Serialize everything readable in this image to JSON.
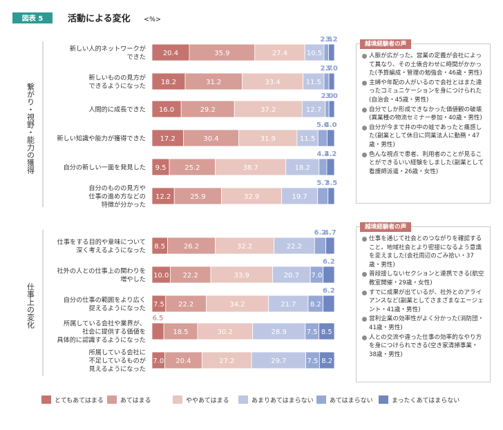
{
  "figure": {
    "badge": "図表 5",
    "title": "活動による変化",
    "unit": "<%>"
  },
  "groups": [
    {
      "label": "繋がり・視野・能力の獲得"
    },
    {
      "label": "仕事上の変化"
    }
  ],
  "colors": [
    "#c4736e",
    "#d79d97",
    "#e9c6bf",
    "#bdc7e3",
    "#96a8d5",
    "#6f86c1"
  ],
  "comment_boxes": [
    {
      "title": "越境経験者の声",
      "items": [
        "人脈が広がった。営業の定義が会社によって異なり、その土俵合わせに時間がかかった(予算編成・管理の勉強会・46歳・男性)",
        "主婦や年配の人がいるので会社とはまた違ったコミュニケーションを身につけられた(自治会・45歳・男性)",
        "自分でしか形成できなかった価値観の破壊(異業種の物流セミナー参加・40歳・男性)",
        "自分が今まで井の中の蛙であったと痛感した(副業として休日に同業法人に勤務・47歳・男性)",
        "色んな視点で患者、利用者のことが見ることができるいい経験をしました(副業として看護師派遣・26歳・女性)"
      ]
    },
    {
      "title": "越境経験者の声",
      "items": [
        "仕事を通じて社会とのつながりを確認すること。地域社会とより密接になるよう意識を変えました(会社周辺のごみ拾い・37歳・男性)",
        "普段接しないセクションと連携できる(航空教室開催・29歳・女性)",
        "すでに成果が出ているが、社外とのアライアンスなど(副業としてさまざまなエージェント・41歳・男性)",
        "営利企業の効率性がよく分かった(消防団・41歳・男性)",
        "人との交流や違った仕事の効率的なやり方を身につけられできる(空き家清掃事業・38歳・男性)"
      ]
    }
  ],
  "chart_data": {
    "type": "bar",
    "orientation": "horizontal",
    "stacked": true,
    "percent_scale": [
      0,
      100
    ],
    "series": [
      {
        "name": "とてもあてはまる",
        "values": [
          20.4,
          18.2,
          16.0,
          17.2,
          9.5,
          12.2,
          8.5,
          10.0,
          7.5,
          6.5,
          7.0
        ]
      },
      {
        "name": "あてはまる",
        "values": [
          35.9,
          31.2,
          29.2,
          30.4,
          25.2,
          25.9,
          26.2,
          22.2,
          22.2,
          18.5,
          20.4
        ]
      },
      {
        "name": "ややあてはまる",
        "values": [
          27.4,
          33.4,
          37.2,
          31.9,
          38.7,
          32.9,
          32.2,
          33.9,
          34.2,
          30.2,
          27.2
        ]
      },
      {
        "name": "あまりあてはまらない",
        "values": [
          10.5,
          11.5,
          12.7,
          11.5,
          18.2,
          19.7,
          22.2,
          20.7,
          21.7,
          28.9,
          29.7
        ]
      },
      {
        "name": "あてはまらない",
        "values": [
          2.5,
          2.7,
          2.0,
          5.0,
          4.2,
          5.7,
          6.2,
          7.0,
          8.2,
          7.5,
          7.5
        ]
      },
      {
        "name": "まったくあてはまらない",
        "values": [
          3.2,
          3.0,
          3.0,
          4.0,
          4.2,
          3.5,
          4.7,
          6.2,
          6.2,
          8.5,
          8.2
        ]
      }
    ],
    "categories": [
      [
        "新しい人的ネットワークが",
        "できた"
      ],
      [
        "新しいものの見方が",
        "できるようになった"
      ],
      [
        "人間的に成長できた"
      ],
      [
        "新しい知識や能力が獲得できた"
      ],
      [
        "自分の新しい一面を発見した"
      ],
      [
        "自分のものの見方や",
        "仕事の進め方などの",
        "特徴が分かった"
      ],
      [
        "仕事をする目的や意味について",
        "深く考えるようになった"
      ],
      [
        "社外の人との仕事上の関わりを",
        "増やした"
      ],
      [
        "自分の仕事の範囲をより広く",
        "捉えるようになった"
      ],
      [
        "所属している会社や業界が、",
        "社会に提供する価値を",
        "具体的に認識するようになった"
      ],
      [
        "所属している会社に",
        "不足しているものが",
        "見えるようになった"
      ]
    ],
    "outside_labels": [
      [
        "2.5",
        "3.2"
      ],
      [
        "2.7",
        "3.0"
      ],
      [
        "2.0",
        "3.0"
      ],
      [
        "5.0",
        "4.0"
      ],
      [
        "4.2",
        "4.2"
      ],
      [
        "5.7",
        "3.5"
      ],
      [
        "6.2",
        "4.7"
      ],
      [
        "",
        "6.2"
      ],
      [
        "",
        "6.2"
      ],
      [
        "6.5",
        ""
      ],
      [
        "",
        ""
      ]
    ],
    "inside_labels": [
      [
        "20.4",
        "35.9",
        "27.4",
        "10.5",
        "",
        ""
      ],
      [
        "18.2",
        "31.2",
        "33.4",
        "11.5",
        "",
        ""
      ],
      [
        "16.0",
        "29.2",
        "37.2",
        "12.7",
        "",
        ""
      ],
      [
        "17.2",
        "30.4",
        "31.9",
        "11.5",
        "",
        ""
      ],
      [
        "9.5",
        "25.2",
        "38.7",
        "18.2",
        "",
        ""
      ],
      [
        "12.2",
        "25.9",
        "32.9",
        "19.7",
        "",
        ""
      ],
      [
        "8.5",
        "26.2",
        "32.2",
        "22.2",
        "",
        ""
      ],
      [
        "10.0",
        "22.2",
        "33.9",
        "20.7",
        "7.0",
        ""
      ],
      [
        "7.5",
        "22.2",
        "34.2",
        "21.7",
        "8.2",
        ""
      ],
      [
        "",
        "18.5",
        "30.2",
        "28.9",
        "7.5",
        "8.5"
      ],
      [
        "7.0",
        "20.4",
        "27.2",
        "29.7",
        "7.5",
        "8.2"
      ]
    ],
    "legend_position": "bottom"
  }
}
